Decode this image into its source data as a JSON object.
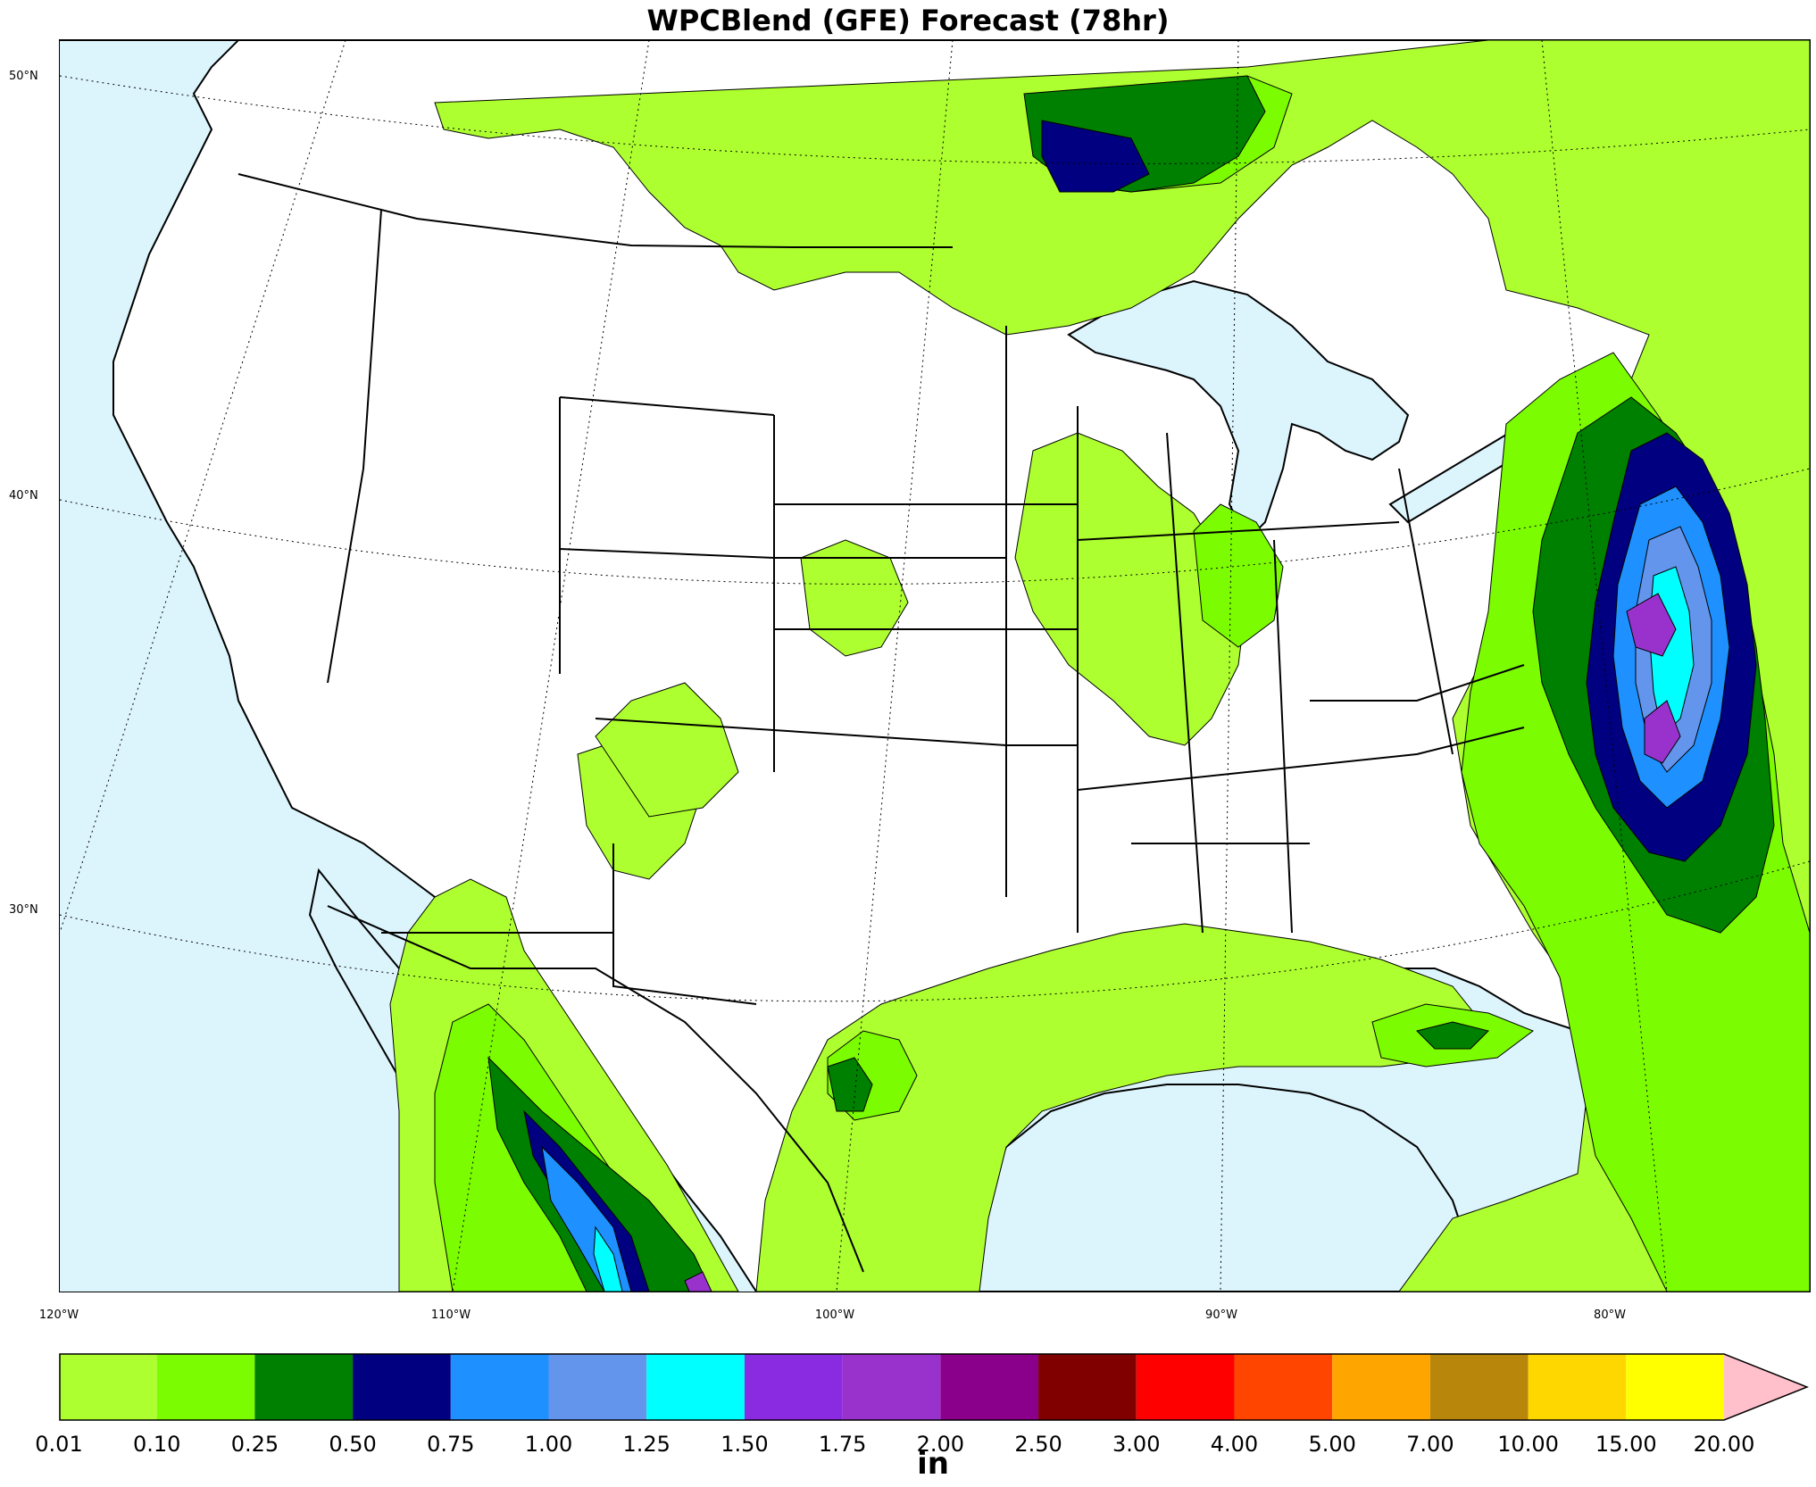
{
  "title": "WPCBlend (GFE) Forecast (78hr)",
  "lat_labels": [
    "50°N",
    "40°N",
    "30°N"
  ],
  "lon_labels": [
    "120°W",
    "110°W",
    "100°W",
    "90°W",
    "80°W"
  ],
  "colorbar": {
    "units": "in",
    "levels": [
      "0.01",
      "0.10",
      "0.25",
      "0.50",
      "0.75",
      "1.00",
      "1.25",
      "1.50",
      "1.75",
      "2.00",
      "2.50",
      "3.00",
      "4.00",
      "5.00",
      "7.00",
      "10.00",
      "15.00",
      "20.00"
    ],
    "colors": [
      "#adff2f",
      "#7cfc00",
      "#008000",
      "#000080",
      "#1e90ff",
      "#6495ed",
      "#00ffff",
      "#8a2be2",
      "#9932cc",
      "#8b008b",
      "#800000",
      "#ff0000",
      "#ff4500",
      "#ffa500",
      "#b8860b",
      "#ffd700",
      "#ffff00"
    ],
    "extend_color": "#ffc0cb"
  },
  "map": {
    "ocean_color": "#dcf4fc",
    "land_color": "#ffffff"
  }
}
